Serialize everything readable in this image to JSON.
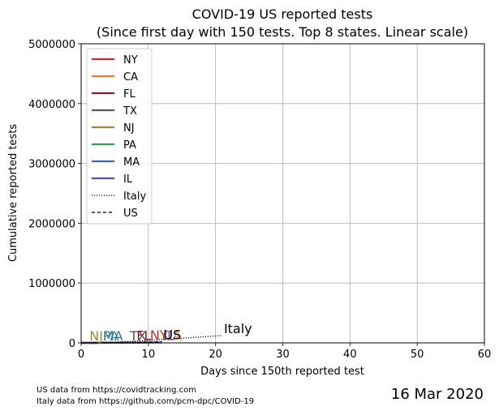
{
  "chart_data": {
    "type": "line",
    "title": "COVID-19 US reported tests",
    "subtitle": "(Since first day with 150 tests. Top 8 states. Linear scale)",
    "xlabel": "Days since 150th reported test",
    "ylabel": "Cumulative reported tests",
    "xlim": [
      0,
      60
    ],
    "ylim": [
      0,
      5000000
    ],
    "x_ticks": [
      0,
      10,
      20,
      30,
      40,
      50,
      60
    ],
    "y_ticks": [
      0,
      1000000,
      2000000,
      3000000,
      4000000,
      5000000
    ],
    "grid": true,
    "legend_position": "top-left",
    "series": [
      {
        "name": "NY",
        "color": "#b83232",
        "style": "solid",
        "x": [
          0,
          1,
          2,
          3,
          4,
          5,
          6,
          7,
          8,
          9,
          10
        ],
        "y": [
          150,
          300,
          600,
          1200,
          2000,
          3000,
          4000,
          5000,
          6000,
          8000,
          11000
        ],
        "end_label": "NY"
      },
      {
        "name": "CA",
        "color": "#e07b39",
        "style": "solid",
        "x": [
          0,
          1,
          2,
          3,
          4,
          5,
          6,
          7,
          8,
          9,
          10,
          11,
          12
        ],
        "y": [
          150,
          300,
          500,
          800,
          1200,
          1800,
          2500,
          3500,
          4500,
          5500,
          6500,
          7500,
          8000
        ],
        "end_label": "CA"
      },
      {
        "name": "FL",
        "color": "#7a1f2b",
        "style": "solid",
        "x": [
          0,
          1,
          2,
          3,
          4,
          5,
          6,
          7,
          8
        ],
        "y": [
          150,
          300,
          500,
          800,
          1200,
          1800,
          2500,
          3500,
          4500
        ],
        "end_label": "FL"
      },
      {
        "name": "TX",
        "color": "#555555",
        "style": "solid",
        "x": [
          0,
          1,
          2,
          3,
          4,
          5,
          6,
          7
        ],
        "y": [
          150,
          250,
          400,
          600,
          800,
          1000,
          1200,
          1500
        ],
        "end_label": "TX"
      },
      {
        "name": "NJ",
        "color": "#9a8a3a",
        "style": "solid",
        "x": [
          0,
          1
        ],
        "y": [
          150,
          400
        ],
        "end_label": "NJ"
      },
      {
        "name": "PA",
        "color": "#3a9a5a",
        "style": "solid",
        "x": [
          0,
          1,
          2,
          3
        ],
        "y": [
          150,
          300,
          600,
          900
        ],
        "end_label": "PA"
      },
      {
        "name": "MA",
        "color": "#3a6aa8",
        "style": "solid",
        "x": [
          0,
          1,
          2,
          3
        ],
        "y": [
          150,
          400,
          800,
          1200
        ],
        "end_label": "MA"
      },
      {
        "name": "IL",
        "color": "#6a4a9a",
        "style": "solid",
        "x": [
          0,
          1,
          2,
          3,
          4,
          5,
          6,
          7,
          8,
          9,
          10,
          11,
          12
        ],
        "y": [
          150,
          250,
          400,
          600,
          900,
          1200,
          1600,
          2000,
          2500,
          3000,
          3500,
          4000,
          5000
        ],
        "end_label": "IL"
      },
      {
        "name": "Italy",
        "color": "#000000",
        "style": "dotted",
        "x": [
          0,
          2,
          4,
          6,
          8,
          10,
          12,
          14,
          16,
          18,
          20,
          21
        ],
        "y": [
          150,
          3000,
          9000,
          18000,
          28000,
          40000,
          55000,
          70000,
          85000,
          100000,
          115000,
          124899
        ],
        "end_label": "Italy"
      },
      {
        "name": "US",
        "color": "#000000",
        "style": "dashed",
        "x": [
          0,
          2,
          4,
          6,
          8,
          10,
          12
        ],
        "y": [
          150,
          800,
          2000,
          4000,
          8000,
          14000,
          22000
        ],
        "end_label": "US"
      }
    ]
  },
  "footer": {
    "source_us": "US data from https://covidtracking.com",
    "source_italy": "Italy data from https://github.com/pcm-dpc/COVID-19",
    "date": "16 Mar 2020"
  }
}
